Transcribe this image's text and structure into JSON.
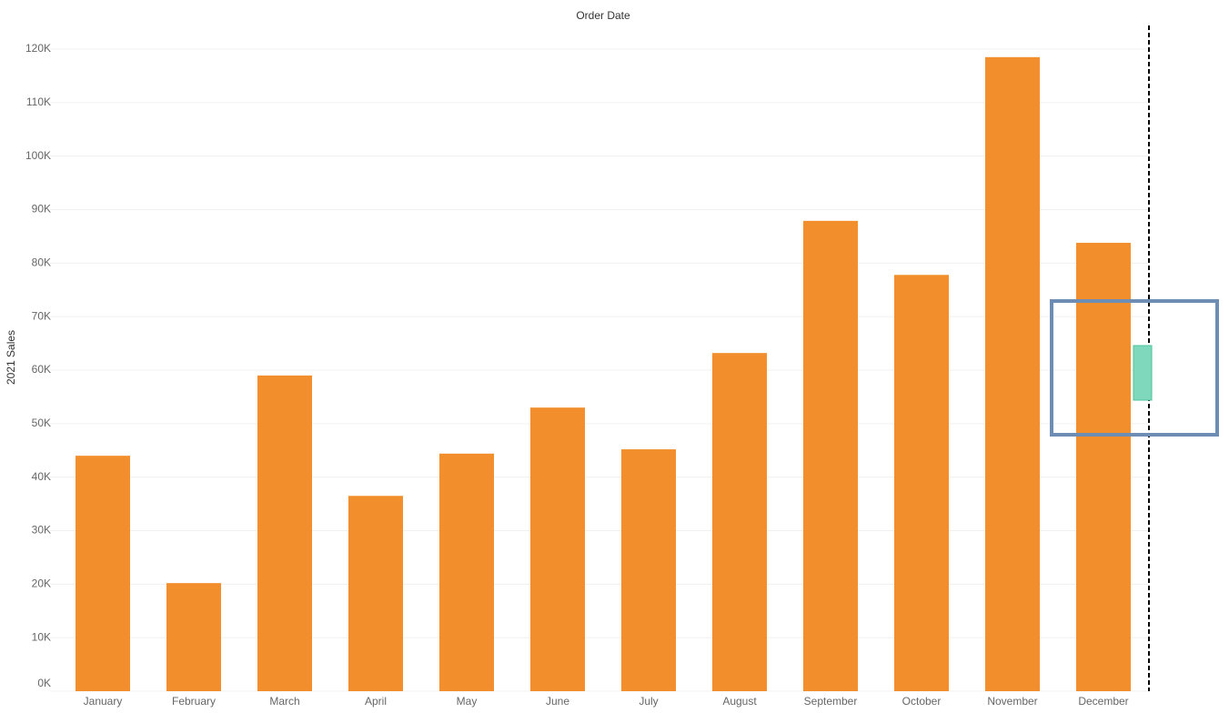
{
  "chart_data": {
    "type": "bar",
    "title": "Order Date",
    "y_label": "2021 Sales",
    "categories": [
      "January",
      "February",
      "March",
      "April",
      "May",
      "June",
      "July",
      "August",
      "September",
      "October",
      "November",
      "December"
    ],
    "values": [
      44000,
      20200,
      59000,
      36500,
      44400,
      53000,
      45200,
      63200,
      87900,
      77800,
      118500,
      83800
    ],
    "color": "#f28e2b",
    "ylim": [
      0,
      120000
    ],
    "yticks": [
      {
        "value": 0,
        "label": "0K"
      },
      {
        "value": 10000,
        "label": "10K"
      },
      {
        "value": 20000,
        "label": "20K"
      },
      {
        "value": 30000,
        "label": "30K"
      },
      {
        "value": 40000,
        "label": "40K"
      },
      {
        "value": 50000,
        "label": "50K"
      },
      {
        "value": 60000,
        "label": "60K"
      },
      {
        "value": 70000,
        "label": "70K"
      },
      {
        "value": 80000,
        "label": "80K"
      },
      {
        "value": 90000,
        "label": "90K"
      },
      {
        "value": 100000,
        "label": "100K"
      },
      {
        "value": 110000,
        "label": "110K"
      },
      {
        "value": 120000,
        "label": "120K"
      }
    ],
    "grid": true
  }
}
